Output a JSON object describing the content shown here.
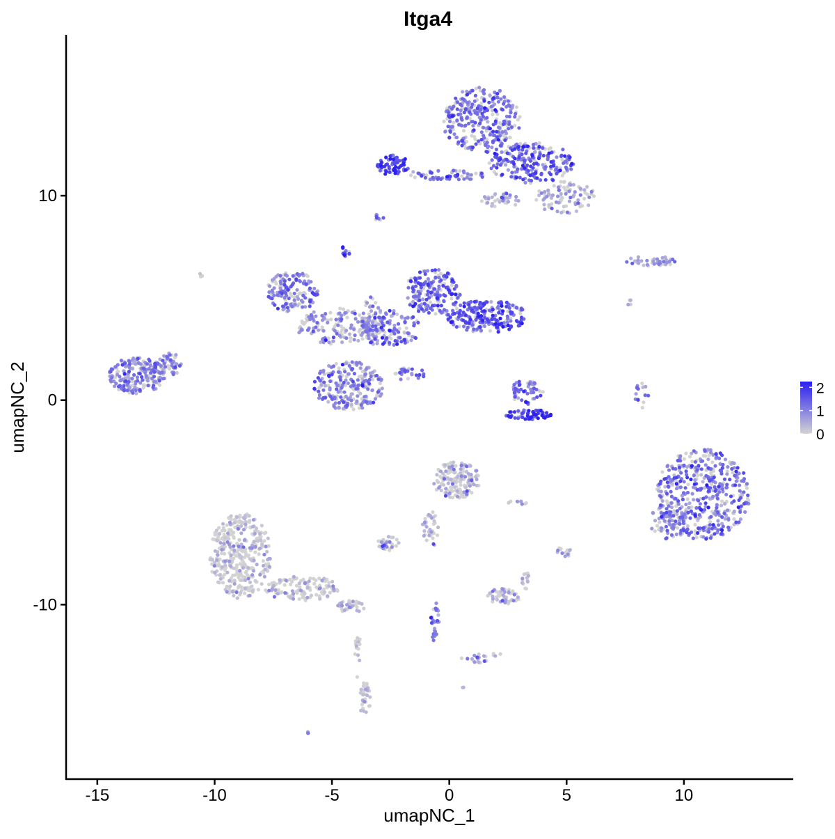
{
  "chart_data": {
    "type": "scatter",
    "title": "Itga4",
    "xlabel": "umapNC_1",
    "ylabel": "umapNC_2",
    "xlim": [
      -16.3,
      14.6
    ],
    "ylim": [
      -18.5,
      17.8
    ],
    "x_ticks": [
      -15,
      -10,
      -5,
      0,
      5,
      10
    ],
    "x_tick_labels": [
      "-15",
      "-10",
      "-5",
      "0",
      "5",
      "10"
    ],
    "y_ticks": [
      -10,
      0,
      10
    ],
    "y_tick_labels": [
      "-10",
      "0",
      "10"
    ],
    "grid": false,
    "legend": {
      "placement": "right",
      "type": "colorbar",
      "labels": [
        "2",
        "1",
        "0"
      ],
      "values": [
        2,
        1,
        0
      ],
      "range": [
        0,
        2.25
      ]
    },
    "colors": {
      "low": "#d3d3d3",
      "high": "#2a1ef0"
    },
    "clusters": [
      {
        "x": 1.4,
        "y": 13.7,
        "rx": 1.7,
        "ry": 1.6,
        "mean": 1.15,
        "n": 320
      },
      {
        "x": 3.5,
        "y": 11.6,
        "rx": 1.8,
        "ry": 1.0,
        "mean": 1.35,
        "n": 240
      },
      {
        "x": 4.9,
        "y": 9.9,
        "rx": 1.4,
        "ry": 0.8,
        "mean": 0.45,
        "n": 90
      },
      {
        "x": -2.4,
        "y": 11.5,
        "rx": 0.7,
        "ry": 0.5,
        "mean": 1.6,
        "n": 70
      },
      {
        "x": -0.2,
        "y": 11.0,
        "rx": 1.8,
        "ry": 0.25,
        "mean": 1.1,
        "n": 60
      },
      {
        "x": 2.2,
        "y": 9.8,
        "rx": 0.9,
        "ry": 0.35,
        "mean": 0.5,
        "n": 40
      },
      {
        "x": -3.0,
        "y": 8.9,
        "rx": 0.2,
        "ry": 0.3,
        "mean": 1.2,
        "n": 8
      },
      {
        "x": -6.7,
        "y": 5.3,
        "rx": 1.1,
        "ry": 1.0,
        "mean": 1.05,
        "n": 150
      },
      {
        "x": -4.8,
        "y": 3.6,
        "rx": 1.7,
        "ry": 0.9,
        "mean": 0.75,
        "n": 140
      },
      {
        "x": -0.7,
        "y": 5.3,
        "rx": 1.2,
        "ry": 1.1,
        "mean": 1.3,
        "n": 190
      },
      {
        "x": 1.6,
        "y": 4.1,
        "rx": 1.7,
        "ry": 0.8,
        "mean": 1.45,
        "n": 230
      },
      {
        "x": -2.6,
        "y": 3.5,
        "rx": 1.4,
        "ry": 0.9,
        "mean": 1.1,
        "n": 130
      },
      {
        "x": -4.3,
        "y": 0.7,
        "rx": 1.5,
        "ry": 1.2,
        "mean": 1.0,
        "n": 230
      },
      {
        "x": -3.3,
        "y": 3.9,
        "rx": 0.4,
        "ry": 1.2,
        "mean": 0.7,
        "n": 40
      },
      {
        "x": -1.8,
        "y": 1.3,
        "rx": 0.8,
        "ry": 0.3,
        "mean": 1.3,
        "n": 25
      },
      {
        "x": -4.4,
        "y": 7.3,
        "rx": 0.2,
        "ry": 0.3,
        "mean": 1.5,
        "n": 12
      },
      {
        "x": -13.3,
        "y": 1.2,
        "rx": 1.2,
        "ry": 0.9,
        "mean": 0.95,
        "n": 200
      },
      {
        "x": -11.9,
        "y": 1.7,
        "rx": 0.6,
        "ry": 0.6,
        "mean": 0.9,
        "n": 50
      },
      {
        "x": 3.3,
        "y": 0.4,
        "rx": 0.7,
        "ry": 0.6,
        "mean": 1.2,
        "n": 60
      },
      {
        "x": 3.4,
        "y": -0.7,
        "rx": 1.0,
        "ry": 0.25,
        "mean": 1.8,
        "n": 70
      },
      {
        "x": 8.6,
        "y": 6.8,
        "rx": 1.1,
        "ry": 0.25,
        "mean": 0.5,
        "n": 45
      },
      {
        "x": 8.2,
        "y": 0.2,
        "rx": 0.3,
        "ry": 0.7,
        "mean": 1.1,
        "n": 18
      },
      {
        "x": 10.8,
        "y": -4.6,
        "rx": 2.0,
        "ry": 2.2,
        "mean": 1.05,
        "n": 460
      },
      {
        "x": 9.3,
        "y": -5.9,
        "rx": 0.8,
        "ry": 1.0,
        "mean": 0.9,
        "n": 80
      },
      {
        "x": -8.9,
        "y": -7.6,
        "rx": 1.3,
        "ry": 2.1,
        "mean": 0.02,
        "n": 360
      },
      {
        "x": -6.3,
        "y": -9.2,
        "rx": 1.6,
        "ry": 0.6,
        "mean": 0.03,
        "n": 130
      },
      {
        "x": -4.2,
        "y": -10.1,
        "rx": 0.6,
        "ry": 0.3,
        "mean": 0.05,
        "n": 35
      },
      {
        "x": -3.6,
        "y": -14.6,
        "rx": 0.25,
        "ry": 0.8,
        "mean": 0.08,
        "n": 35
      },
      {
        "x": -3.9,
        "y": -12.5,
        "rx": 0.12,
        "ry": 1.2,
        "mean": 0.05,
        "n": 14
      },
      {
        "x": 0.3,
        "y": -3.9,
        "rx": 1.0,
        "ry": 0.9,
        "mean": 0.25,
        "n": 160
      },
      {
        "x": -0.8,
        "y": -6.3,
        "rx": 0.35,
        "ry": 0.9,
        "mean": 0.25,
        "n": 35
      },
      {
        "x": -2.6,
        "y": -7.0,
        "rx": 0.45,
        "ry": 0.35,
        "mean": 0.6,
        "n": 30
      },
      {
        "x": 2.3,
        "y": -9.6,
        "rx": 0.7,
        "ry": 0.4,
        "mean": 0.3,
        "n": 55
      },
      {
        "x": 3.2,
        "y": -8.8,
        "rx": 0.2,
        "ry": 0.5,
        "mean": 0.3,
        "n": 14
      },
      {
        "x": -0.6,
        "y": -10.9,
        "rx": 0.2,
        "ry": 1.0,
        "mean": 1.0,
        "n": 25
      },
      {
        "x": 1.6,
        "y": -12.6,
        "rx": 1.1,
        "ry": 0.25,
        "mean": 0.5,
        "n": 22
      },
      {
        "x": 4.9,
        "y": -7.4,
        "rx": 0.35,
        "ry": 0.25,
        "mean": 0.2,
        "n": 15
      },
      {
        "x": 2.9,
        "y": -5.0,
        "rx": 0.5,
        "ry": 0.1,
        "mean": 0.3,
        "n": 8
      },
      {
        "x": -10.6,
        "y": 6.1,
        "rx": 0.08,
        "ry": 0.1,
        "mean": 0.5,
        "n": 3
      },
      {
        "x": -6.0,
        "y": -16.2,
        "rx": 0.1,
        "ry": 0.1,
        "mean": 0.4,
        "n": 3
      },
      {
        "x": 0.6,
        "y": -14.0,
        "rx": 0.06,
        "ry": 0.1,
        "mean": 0.3,
        "n": 3
      },
      {
        "x": 7.7,
        "y": 4.7,
        "rx": 0.15,
        "ry": 0.2,
        "mean": 0.5,
        "n": 4
      }
    ]
  }
}
